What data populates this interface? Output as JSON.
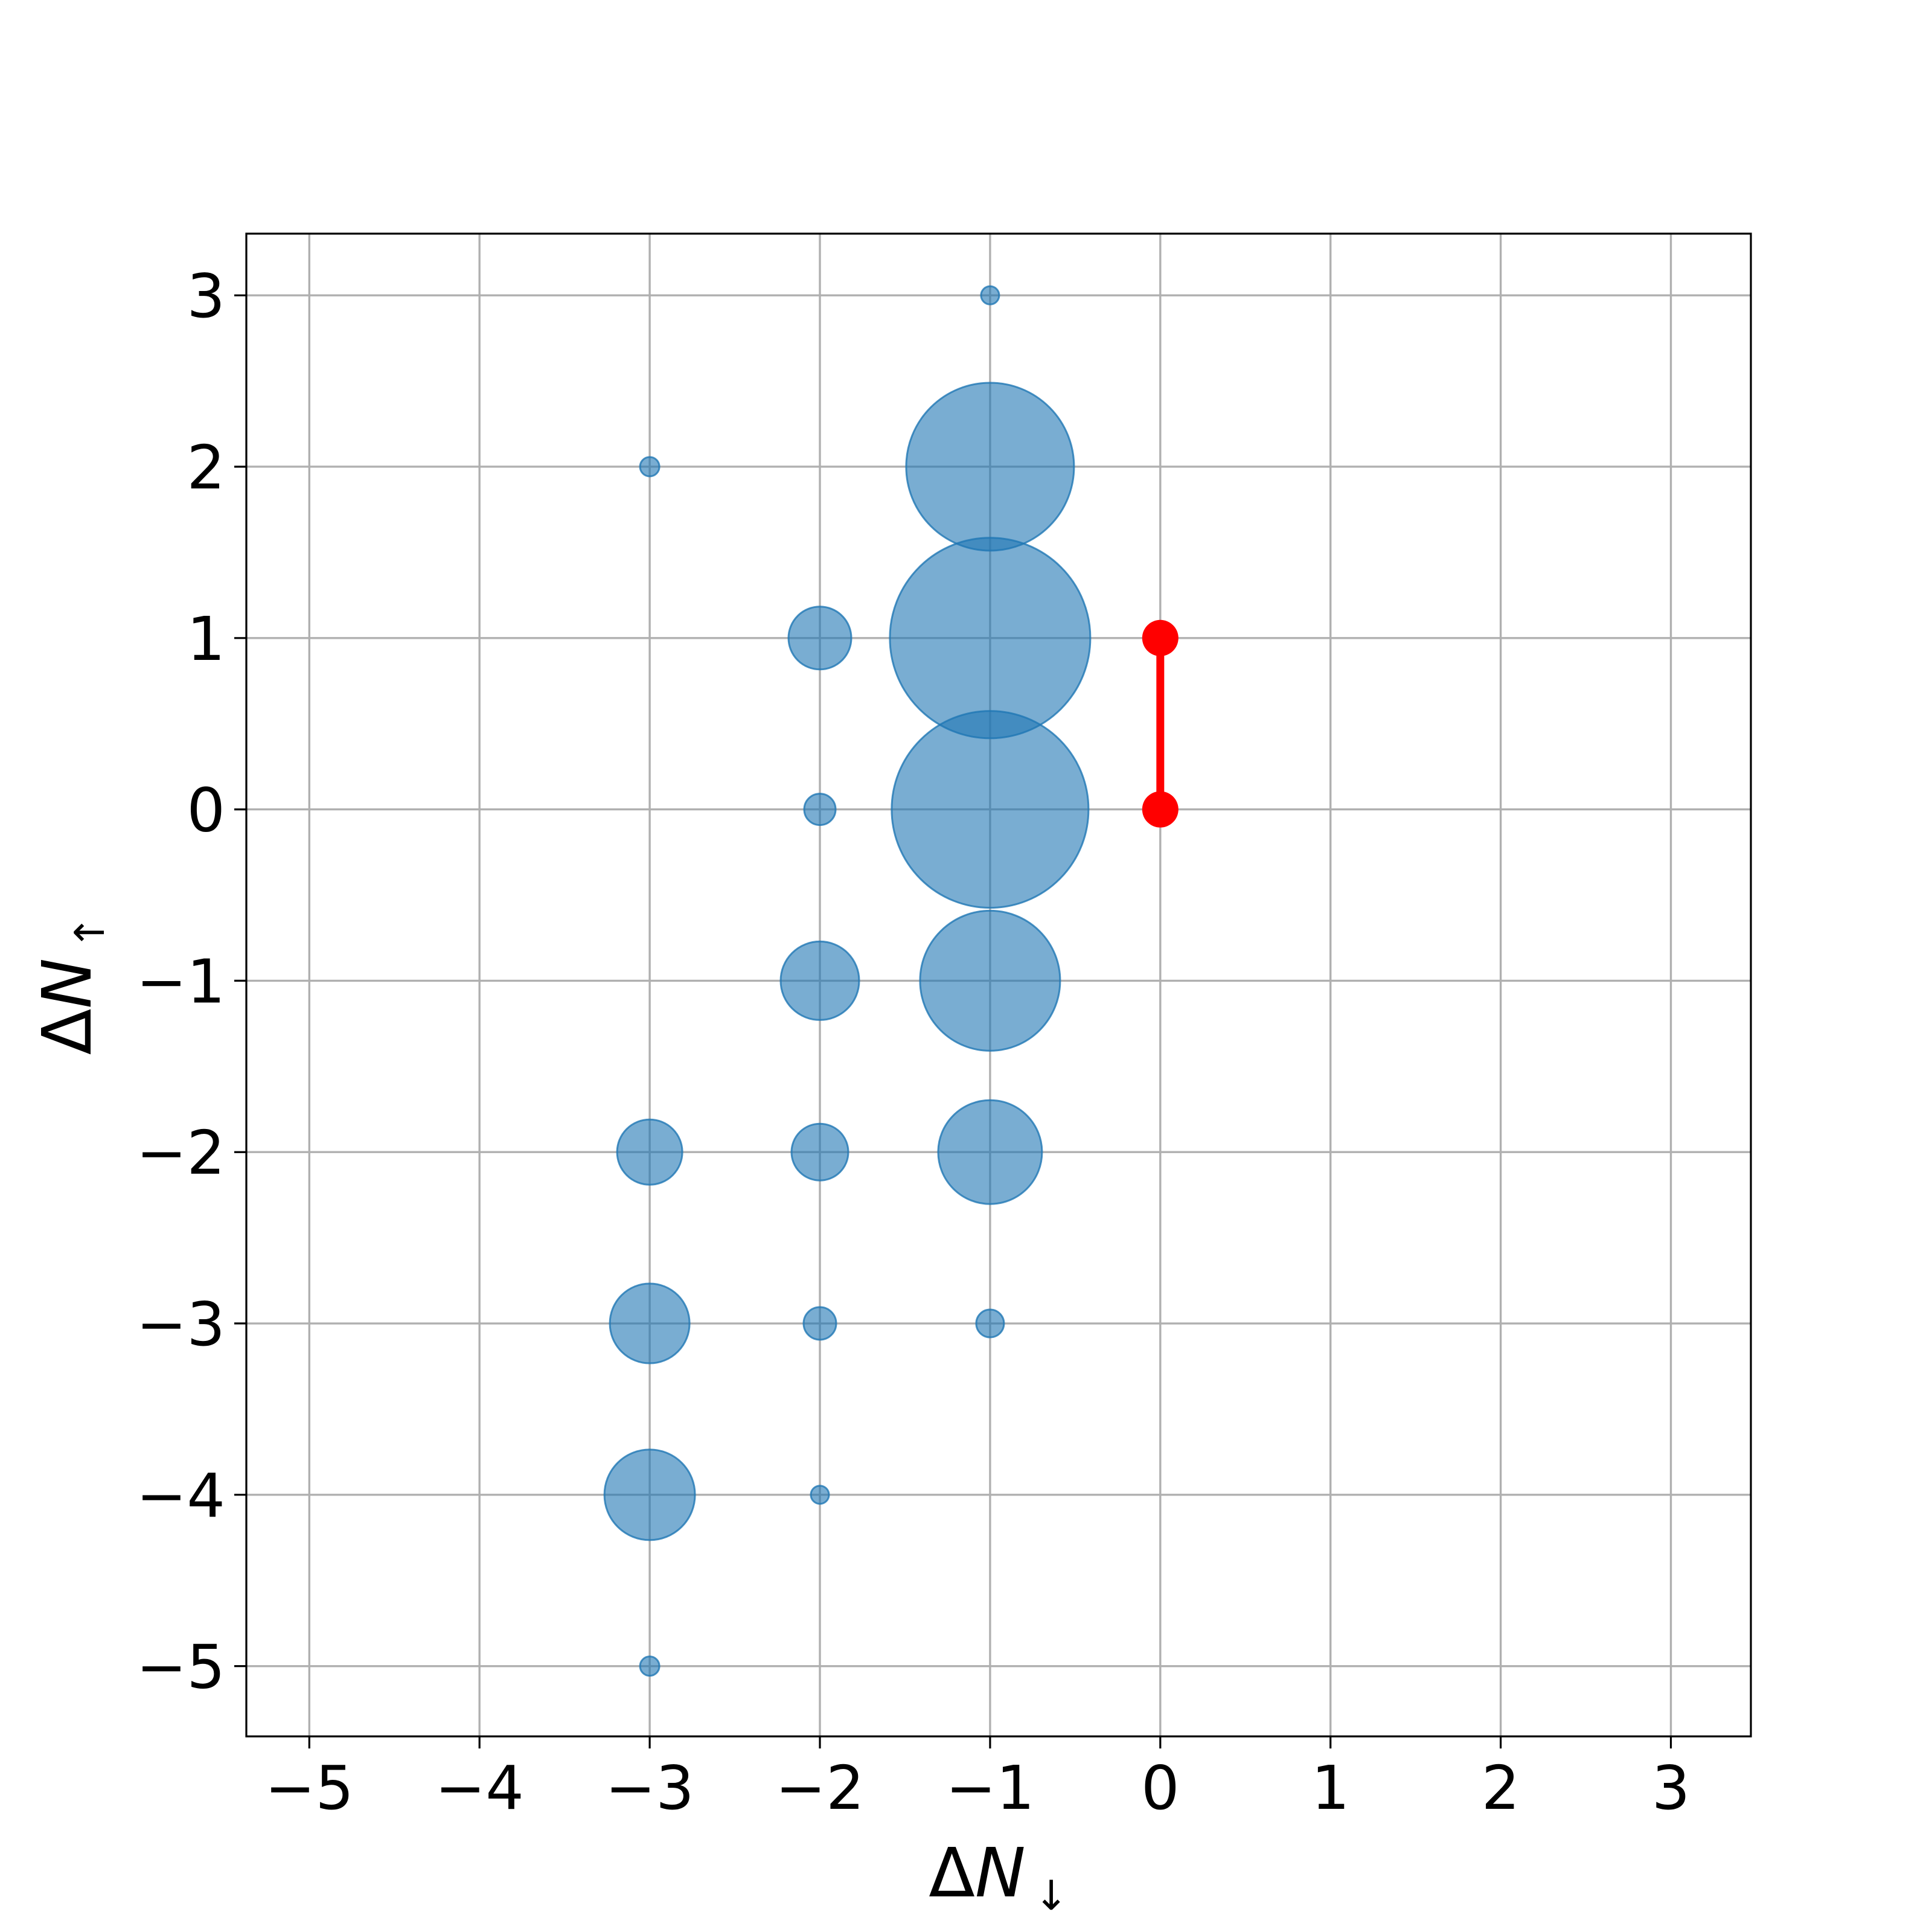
{
  "chart_data": {
    "type": "scatter",
    "title": "",
    "xlabel": {
      "prefix": "Δ",
      "letter": "N",
      "subscript": "↓"
    },
    "ylabel": {
      "prefix": "Δ",
      "letter": "N",
      "subscript": "↑"
    },
    "xlim": [
      -5.37,
      3.47
    ],
    "ylim": [
      -5.41,
      3.36
    ],
    "grid": true,
    "grid_color": "#b0b0b0",
    "spine_color": "#000000",
    "background_color": "#ffffff",
    "x_ticks": [
      {
        "value": -5,
        "label": "−5"
      },
      {
        "value": -4,
        "label": "−4"
      },
      {
        "value": -3,
        "label": "−3"
      },
      {
        "value": -2,
        "label": "−2"
      },
      {
        "value": -1,
        "label": "−1"
      },
      {
        "value": 0,
        "label": "0"
      },
      {
        "value": 1,
        "label": "1"
      },
      {
        "value": 2,
        "label": "2"
      },
      {
        "value": 3,
        "label": "3"
      }
    ],
    "y_ticks": [
      {
        "value": 3,
        "label": "3"
      },
      {
        "value": 2,
        "label": "2"
      },
      {
        "value": 1,
        "label": "1"
      },
      {
        "value": 0,
        "label": "0"
      },
      {
        "value": -1,
        "label": "−1"
      },
      {
        "value": -2,
        "label": "−2"
      },
      {
        "value": -3,
        "label": "−3"
      },
      {
        "value": -4,
        "label": "−4"
      },
      {
        "value": -5,
        "label": "−5"
      }
    ],
    "bubbles": {
      "name": "particle-number-change-distribution",
      "color": "#1f77b4",
      "fill_opacity": 0.6,
      "edge_opacity": 0.8,
      "edge_width": 3,
      "points": [
        {
          "x": -1,
          "y": 3,
          "r": 15
        },
        {
          "x": -3,
          "y": 2,
          "r": 16
        },
        {
          "x": -1,
          "y": 2,
          "r": 139
        },
        {
          "x": -2,
          "y": 1,
          "r": 52
        },
        {
          "x": -1,
          "y": 1,
          "r": 166
        },
        {
          "x": -2,
          "y": 0,
          "r": 26
        },
        {
          "x": -1,
          "y": 0,
          "r": 163
        },
        {
          "x": -2,
          "y": -1,
          "r": 65
        },
        {
          "x": -1,
          "y": -1,
          "r": 116
        },
        {
          "x": -3,
          "y": -2,
          "r": 54
        },
        {
          "x": -2,
          "y": -2,
          "r": 47
        },
        {
          "x": -1,
          "y": -2,
          "r": 86
        },
        {
          "x": -3,
          "y": -3,
          "r": 66
        },
        {
          "x": -2,
          "y": -3,
          "r": 27
        },
        {
          "x": -1,
          "y": -3,
          "r": 23
        },
        {
          "x": -3,
          "y": -4,
          "r": 75
        },
        {
          "x": -2,
          "y": -4,
          "r": 15
        },
        {
          "x": -3,
          "y": -5,
          "r": 16
        }
      ]
    },
    "red_marker": {
      "name": "reference-segment",
      "color": "#ff0000",
      "points": [
        {
          "x": 0,
          "y": 1
        },
        {
          "x": 0,
          "y": 0
        }
      ],
      "dot_radius": 30,
      "line_width": 13
    }
  }
}
